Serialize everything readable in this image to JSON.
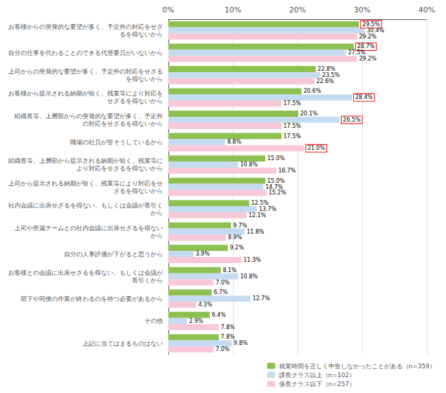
{
  "chart_data": {
    "type": "bar",
    "orientation": "horizontal",
    "categories": [
      "お客様からの突発的な要望が多く、予定外の対応をせざ\nるを得ないから",
      "自分の仕事を代わることのできる代替要員がいないから",
      "上司からの突発的な要望が多く、予定外の対応をせざる\nを得ないから",
      "お客様から提示される納期が短く、残業等により対応を\nせざるを得ないから",
      "組織長等、上層部からの突発的な要望が多く、予定外\nの対応をせざるを得ないから",
      "職場の社員が皆そうしているから",
      "組織長等、上層部から提示される納期が短く、残業等に\nより対応をせざるを得ないから",
      "上司から提示される納期が短く、残業等により対応をせ\nざるを得ないから",
      "社内会議に出席せざるを得ない、もしくは会議が長引く\nから",
      "上司や所属チームとの社内会議に出席せざるを得ない\nから",
      "自分の人事評価が下がると思うから",
      "お客様との会議に出席せざるを得ない、もしくは会議が\n長引くから",
      "部下や同僚の作業が終わるのを待つ必要があるから",
      "その他",
      "上記に当てはまるものはない"
    ],
    "series": [
      {
        "name": "就業時間を正しく申告しなかったことがある（n=359）",
        "color": "#8DC050",
        "values": [
          29.5,
          28.7,
          22.8,
          20.6,
          20.1,
          17.5,
          15.0,
          15.0,
          12.5,
          9.7,
          9.2,
          8.1,
          6.7,
          6.4,
          7.8
        ],
        "value_labels": [
          "29.5%",
          "28.7%",
          "22.8%",
          "20.6%",
          "20.1%",
          "17.5%",
          "15.0%",
          "15.0%",
          "12.5%",
          "9.7%",
          "9.2%",
          "8.1%",
          "6.7%",
          "6.4%",
          "7.8%"
        ],
        "highlighted": [
          true,
          true,
          false,
          false,
          false,
          false,
          false,
          false,
          false,
          false,
          false,
          false,
          false,
          false,
          false
        ]
      },
      {
        "name": "課長クラス以上（n=102）",
        "color": "#C5DCF0",
        "values": [
          30.4,
          27.5,
          23.5,
          28.4,
          26.5,
          8.8,
          10.8,
          14.7,
          13.7,
          11.8,
          3.9,
          10.8,
          12.7,
          2.9,
          9.8
        ],
        "value_labels": [
          "30.4%",
          "27.5%",
          "23.5%",
          "28.4%",
          "26.5%",
          "8.8%",
          "10.8%",
          "14.7%",
          "13.7%",
          "11.8%",
          "3.9%",
          "10.8%",
          "12.7%",
          "2.9%",
          "9.8%"
        ],
        "highlighted": [
          false,
          false,
          false,
          true,
          true,
          false,
          false,
          false,
          false,
          false,
          false,
          false,
          false,
          false,
          false
        ]
      },
      {
        "name": "係長クラス以下（n=257）",
        "color": "#F9C8D8",
        "values": [
          29.2,
          29.2,
          22.6,
          17.5,
          17.5,
          21.0,
          16.7,
          15.2,
          12.1,
          8.9,
          11.3,
          7.0,
          4.3,
          7.8,
          7.0
        ],
        "value_labels": [
          "29.2%",
          "29.2%",
          "22.6%",
          "17.5%",
          "17.5%",
          "21.0%",
          "16.7%",
          "15.2%",
          "12.1%",
          "8.9%",
          "11.3%",
          "7.0%",
          "4.3%",
          "7.8%",
          "7.0%"
        ],
        "highlighted": [
          false,
          false,
          false,
          false,
          false,
          true,
          false,
          false,
          false,
          false,
          false,
          false,
          false,
          false,
          false
        ]
      }
    ],
    "xlim": [
      0,
      40
    ],
    "xticks": [
      {
        "value": 0,
        "label": "0%"
      },
      {
        "value": 10,
        "label": "10%"
      },
      {
        "value": 20,
        "label": "20%"
      },
      {
        "value": 30,
        "label": "30%"
      },
      {
        "value": 40,
        "label": "40%"
      }
    ],
    "grid": true,
    "legend": "lower right",
    "data_labels": true
  }
}
